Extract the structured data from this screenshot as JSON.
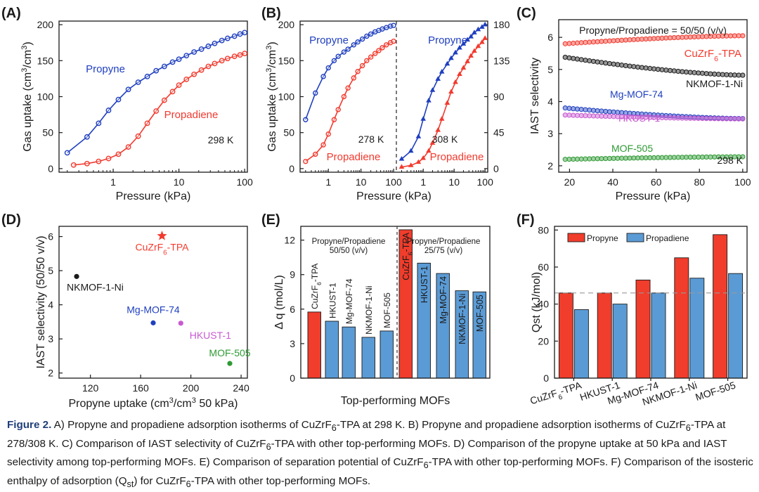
{
  "colors": {
    "blue": "#1f3fbf",
    "red": "#f23a2e",
    "black": "#1a1a1a",
    "purple": "#c85ad1",
    "green": "#2e9a34",
    "barRed": "#f03d2c",
    "barBlue": "#5b9bd5",
    "caption": "#1f3f7a"
  },
  "caption": {
    "label": "Figure 2.",
    "text_parts": [
      " A) Propyne and propadiene adsorption isotherms of CuZrF",
      "6",
      "-TPA at 298 K. B) Propyne and propadiene adsorption isotherms of CuZrF",
      "6",
      "-TPA at 278/308 K. C) Comparison of IAST selectivity of CuZrF",
      "6",
      "-TPA with other top-performing MOFs. D) Comparison of the propyne uptake at 50 kPa and IAST selectivity among top-performing MOFs. E) Comparison of separation potential of CuZrF",
      "6",
      "-TPA with other top-performing MOFs. F) Comparison of the isosteric enthalpy of adsorption (Q",
      "st",
      ") for CuZrF",
      "6",
      "-TPA with other top-performing MOFs."
    ]
  },
  "chart_data": [
    {
      "panel": "(A)",
      "type": "line",
      "xscale": "log",
      "xlim": [
        0.15,
        110
      ],
      "ylim": [
        -5,
        205
      ],
      "xticks": [
        1,
        10,
        100
      ],
      "xtick_labels": [
        "1",
        "10",
        "100"
      ],
      "yticks": [
        0,
        50,
        100,
        150,
        200
      ],
      "ytick_labels": [
        "0",
        "50",
        "100",
        "150",
        "200"
      ],
      "xlabel": "Pressure (kPa)",
      "ylabel": "Gas uptake (cm³/cm³)",
      "annotation": "298 K",
      "series": [
        {
          "name": "Propyne",
          "color_key": "blue",
          "marker": "circle",
          "x": [
            0.2,
            0.4,
            0.6,
            0.85,
            1.2,
            1.7,
            2.4,
            3.3,
            4.5,
            6,
            8,
            10,
            13,
            17,
            22,
            28,
            35,
            45,
            55,
            70,
            85,
            100
          ],
          "y": [
            22,
            44,
            63,
            81,
            96,
            110,
            120,
            128,
            136,
            142,
            148,
            152,
            157,
            162,
            166,
            170,
            174,
            178,
            181,
            184,
            187,
            189
          ]
        },
        {
          "name": "Propadiene",
          "color_key": "red",
          "marker": "circle",
          "x": [
            0.25,
            0.4,
            0.6,
            0.85,
            1.2,
            1.7,
            2.4,
            3.3,
            4.5,
            6,
            8,
            10,
            13,
            17,
            22,
            28,
            35,
            45,
            55,
            70,
            85,
            100
          ],
          "y": [
            5,
            7,
            10,
            14,
            20,
            30,
            45,
            63,
            80,
            95,
            107,
            116,
            124,
            131,
            137,
            142,
            146,
            150,
            153,
            156,
            158,
            160
          ]
        }
      ]
    },
    {
      "panel": "(B)",
      "type": "line",
      "xscale": "log",
      "xtick_labels": [
        "1",
        "10",
        "100"
      ],
      "left": {
        "xlim": [
          0.15,
          110
        ],
        "ylim": [
          -5,
          205
        ],
        "yticks": [
          0,
          50,
          100,
          150,
          200
        ],
        "ytick_labels": [
          "0",
          "50",
          "100",
          "150",
          "200"
        ],
        "annotation": "278 K",
        "series": [
          {
            "name": "Propyne",
            "color_key": "blue",
            "marker": "circle",
            "x": [
              0.2,
              0.4,
              0.7,
              1,
              1.5,
              2,
              3,
              4,
              6,
              8,
              11,
              15,
              20,
              27,
              35,
              45,
              60,
              80,
              100
            ],
            "y": [
              68,
              105,
              128,
              140,
              150,
              156,
              162,
              166,
              172,
              176,
              180,
              184,
              187,
              190,
              192,
              194,
              196,
              198,
              199
            ]
          },
          {
            "name": "Propadiene",
            "color_key": "red",
            "marker": "circle",
            "x": [
              0.2,
              0.4,
              0.7,
              1,
              1.5,
              2,
              3,
              4,
              6,
              8,
              11,
              15,
              20,
              27,
              35,
              45,
              60,
              80,
              100
            ],
            "y": [
              10,
              20,
              33,
              48,
              68,
              82,
              100,
              112,
              126,
              135,
              143,
              150,
              155,
              160,
              164,
              168,
              172,
              175,
              177
            ]
          }
        ]
      },
      "right": {
        "xlim": [
          0.15,
          110
        ],
        "ylim": [
          -4.5,
          184.5
        ],
        "yticks": [
          0,
          45,
          90,
          135,
          180
        ],
        "ytick_labels": [
          "0",
          "45",
          "90",
          "135",
          "180"
        ],
        "annotation": "308 K",
        "series": [
          {
            "name": "Propyne",
            "color_key": "blue",
            "marker": "triangle",
            "x": [
              0.2,
              0.4,
              0.7,
              1,
              1.5,
              2,
              3,
              4,
              6,
              8,
              11,
              15,
              20,
              27,
              35,
              45,
              60,
              80,
              100
            ],
            "y": [
              12,
              22,
              40,
              62,
              85,
              98,
              112,
              121,
              131,
              138,
              145,
              151,
              156,
              161,
              165,
              170,
              174,
              177,
              180
            ]
          },
          {
            "name": "Propadiene",
            "color_key": "red",
            "marker": "triangle",
            "x": [
              0.2,
              0.4,
              0.7,
              1,
              1.5,
              2,
              3,
              4,
              6,
              8,
              11,
              15,
              20,
              27,
              35,
              45,
              60,
              80,
              100
            ],
            "y": [
              2,
              4,
              8,
              13,
              22,
              32,
              48,
              62,
              82,
              96,
              108,
              118,
              126,
              134,
              141,
              147,
              153,
              158,
              163
            ]
          }
        ]
      },
      "xlabel": "Pressure (kPa)",
      "ylabel": "Gas uptake (cm³/cm³)"
    },
    {
      "panel": "(C)",
      "type": "scatter",
      "xlim": [
        15,
        102
      ],
      "ylim": [
        1.8,
        6.55
      ],
      "xticks": [
        20,
        40,
        60,
        80,
        100
      ],
      "xtick_labels": [
        "20",
        "40",
        "60",
        "80",
        "100"
      ],
      "yticks": [
        2,
        3,
        4,
        5,
        6
      ],
      "ytick_labels": [
        "2",
        "3",
        "4",
        "5",
        "6"
      ],
      "xlabel": "Pressure (kPa)",
      "ylabel": "IAST selectivity",
      "title": "Propyne/Propadiene = 50/50 (v/v)",
      "annotation": "298 K",
      "series": [
        {
          "name": "CuZrF6-TPA",
          "color_key": "red",
          "start": 5.8,
          "end": 6.05
        },
        {
          "name": "NKMOF-1-Ni",
          "color_key": "black",
          "start": 5.38,
          "end": 4.82
        },
        {
          "name": "Mg-MOF-74",
          "color_key": "blue",
          "start": 3.8,
          "end": 3.47
        },
        {
          "name": "HKUST-1",
          "color_key": "purple",
          "start": 3.58,
          "end": 3.46
        },
        {
          "name": "MOF-505",
          "color_key": "green",
          "start": 2.2,
          "end": 2.28
        }
      ],
      "labels": {
        "cu": "CuZrF",
        "cu_sub": "6",
        "cu_tail": "-TPA",
        "nk": "NKMOF-1-Ni",
        "mg": "Mg-MOF-74",
        "hk": "HKUST-1",
        "mof": "MOF-505"
      }
    },
    {
      "panel": "(D)",
      "type": "scatter",
      "xlim": [
        95,
        245
      ],
      "ylim": [
        1.85,
        6.3
      ],
      "xticks": [
        120,
        160,
        200,
        240
      ],
      "xtick_labels": [
        "120",
        "160",
        "200",
        "240"
      ],
      "yticks": [
        2,
        3,
        4,
        5,
        6
      ],
      "ytick_labels": [
        "2",
        "3",
        "4",
        "5",
        "6"
      ],
      "xlabel": "Propyne uptake (cm³/cm³ 50 kPa)",
      "ylabel": "IAST selectivity (50/50 v/v)",
      "points": [
        {
          "name": "CuZrF6-TPA",
          "x": 177,
          "y": 6.02,
          "color_key": "red",
          "marker": "star"
        },
        {
          "name": "NKMOF-1-Ni",
          "x": 109,
          "y": 4.83,
          "color_key": "black",
          "marker": "circle"
        },
        {
          "name": "Mg-MOF-74",
          "x": 170,
          "y": 3.47,
          "color_key": "blue",
          "marker": "circle"
        },
        {
          "name": "HKUST-1",
          "x": 192,
          "y": 3.46,
          "color_key": "purple",
          "marker": "circle"
        },
        {
          "name": "MOF-505",
          "x": 231,
          "y": 2.28,
          "color_key": "green",
          "marker": "circle"
        }
      ]
    },
    {
      "panel": "(E)",
      "type": "bar",
      "ylim": [
        0,
        13.2
      ],
      "yticks": [
        0,
        3,
        6,
        9,
        12
      ],
      "ytick_labels": [
        "0",
        "3",
        "6",
        "9",
        "12"
      ],
      "ylabel": "Δ q (mol/L)",
      "xlabel": "Top-performing MOFs",
      "groups": [
        {
          "title1": "Propyne/Propadiene",
          "title2": "50/50 (v/v)",
          "categories": [
            "CuZrF6-TPA",
            "HKUST-1",
            "Mg-MOF-74",
            "NKMOF-1-Ni",
            "MOF-505"
          ],
          "values": [
            5.75,
            4.95,
            4.45,
            3.55,
            4.1
          ]
        },
        {
          "title1": "Propyne/Propadiene",
          "title2": "25/75 (v/v)",
          "categories": [
            "CuZrF6-TPA",
            "HKUST-1",
            "Mg-MOF-74",
            "NKMOF-1-Ni",
            "MOF-505"
          ],
          "values": [
            12.9,
            10.0,
            9.1,
            7.6,
            7.5
          ]
        }
      ]
    },
    {
      "panel": "(F)",
      "type": "bar",
      "ylim": [
        0,
        82
      ],
      "yticks": [
        0,
        20,
        40,
        60,
        80
      ],
      "ytick_labels": [
        "0",
        "20",
        "40",
        "60",
        "80"
      ],
      "ylabel": "Qst (kJ/mol)",
      "categories": [
        "CuZrF6-TPA",
        "HKUST-1",
        "Mg-MOF-74",
        "NKMOF-1-Ni",
        "MOF-505"
      ],
      "series": [
        {
          "name": "Propyne",
          "color_key": "barRed",
          "values": [
            46,
            46,
            53,
            65,
            77.5
          ]
        },
        {
          "name": "Propadiene",
          "color_key": "barBlue",
          "values": [
            37,
            40,
            46,
            54,
            56.5
          ]
        }
      ],
      "reference_line": 46
    }
  ]
}
